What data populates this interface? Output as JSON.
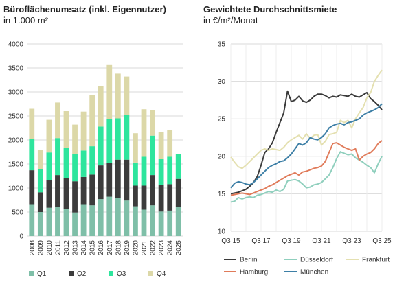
{
  "chart_data": [
    {
      "type": "bar",
      "stacked": true,
      "title": "Büroflächenumsatz (inkl. Eigennutzer)",
      "subtitle": "in 1.000 m²",
      "categories": [
        "2008",
        "2009",
        "2010",
        "2011",
        "2012",
        "2013",
        "2014",
        "2015",
        "2016",
        "2017",
        "2018",
        "2019",
        "2020",
        "2021",
        "2022",
        "2023",
        "2024",
        "2025"
      ],
      "ylim": [
        0,
        4000
      ],
      "yticks": [
        0,
        500,
        1000,
        1500,
        2000,
        2500,
        3000,
        3500,
        4000
      ],
      "grid": true,
      "legend_position": "bottom",
      "series": [
        {
          "name": "Q1",
          "color": "#7fbfa8",
          "values": [
            650,
            500,
            590,
            610,
            560,
            490,
            650,
            640,
            770,
            820,
            800,
            740,
            620,
            550,
            640,
            510,
            530,
            600
          ]
        },
        {
          "name": "Q2",
          "color": "#3c3c3c",
          "values": [
            720,
            410,
            570,
            660,
            640,
            650,
            580,
            640,
            700,
            700,
            790,
            850,
            430,
            500,
            630,
            560,
            550,
            590
          ]
        },
        {
          "name": "Q3",
          "color": "#2ee59d",
          "values": [
            650,
            480,
            580,
            770,
            630,
            560,
            550,
            590,
            810,
            910,
            860,
            930,
            480,
            600,
            820,
            530,
            570,
            510
          ]
        },
        {
          "name": "Q4",
          "color": "#dcd8a8",
          "values": [
            630,
            410,
            680,
            740,
            770,
            620,
            810,
            1070,
            840,
            1130,
            930,
            800,
            610,
            990,
            530,
            570,
            560,
            0
          ]
        }
      ]
    },
    {
      "type": "line",
      "title": "Gewichtete Durchschnittsmiete",
      "subtitle": "in €/m²/Monat",
      "x": [
        "Q3 15",
        "Q4 15",
        "Q1 16",
        "Q2 16",
        "Q3 16",
        "Q4 16",
        "Q1 17",
        "Q2 17",
        "Q3 17",
        "Q4 17",
        "Q1 18",
        "Q2 18",
        "Q3 18",
        "Q4 18",
        "Q1 19",
        "Q2 19",
        "Q3 19",
        "Q4 19",
        "Q1 20",
        "Q2 20",
        "Q3 20",
        "Q4 20",
        "Q1 21",
        "Q2 21",
        "Q3 21",
        "Q4 21",
        "Q1 22",
        "Q2 22",
        "Q3 22",
        "Q4 22",
        "Q1 23",
        "Q2 23",
        "Q3 23",
        "Q4 23",
        "Q1 24",
        "Q2 24",
        "Q3 24",
        "Q4 24",
        "Q1 25",
        "Q2 25",
        "Q3 25"
      ],
      "xtick_labels": [
        "Q3 15",
        "Q3 17",
        "Q3 19",
        "Q3 21",
        "Q3 23",
        "Q3 25"
      ],
      "ylim": [
        10,
        35
      ],
      "yticks": [
        10,
        15,
        20,
        25,
        30,
        35
      ],
      "grid": true,
      "legend_position": "bottom",
      "series": [
        {
          "name": "Berlin",
          "color": "#3a3a3a",
          "values": [
            15.0,
            15.1,
            15.2,
            15.4,
            15.6,
            16.0,
            16.5,
            17.3,
            18.8,
            20.5,
            21.0,
            21.8,
            23.2,
            24.5,
            25.8,
            28.7,
            27.3,
            27.5,
            28.0,
            27.4,
            27.2,
            27.5,
            28.0,
            28.3,
            28.3,
            28.1,
            27.8,
            28.0,
            27.9,
            28.2,
            28.1,
            28.0,
            28.3,
            28.0,
            27.9,
            28.2,
            28.5,
            27.7,
            27.3,
            26.8,
            26.2
          ]
        },
        {
          "name": "Düsseldorf",
          "color": "#8fcfbd",
          "values": [
            13.9,
            14.0,
            14.5,
            14.3,
            14.5,
            14.6,
            14.5,
            14.8,
            14.9,
            15.1,
            15.3,
            15.2,
            15.5,
            15.3,
            15.6,
            16.7,
            16.8,
            16.9,
            16.7,
            16.3,
            15.8,
            15.9,
            16.2,
            16.3,
            16.5,
            17.0,
            17.5,
            18.5,
            19.7,
            20.6,
            20.4,
            20.2,
            20.3,
            19.8,
            19.5,
            19.2,
            18.8,
            18.5,
            17.8,
            19.0,
            20.0
          ]
        },
        {
          "name": "Frankfurt",
          "color": "#e4e0b0",
          "values": [
            19.9,
            19.2,
            18.6,
            18.4,
            18.8,
            19.3,
            19.8,
            20.3,
            20.8,
            21.0,
            20.8,
            21.0,
            20.9,
            20.8,
            21.2,
            21.8,
            22.2,
            22.5,
            22.8,
            22.3,
            23.0,
            22.4,
            22.8,
            22.9,
            21.5,
            22.0,
            22.9,
            23.0,
            23.2,
            24.8,
            24.5,
            24.8,
            23.8,
            25.0,
            25.8,
            26.5,
            27.8,
            28.5,
            30.0,
            30.8,
            31.5
          ]
        },
        {
          "name": "Hamburg",
          "color": "#e07b5a",
          "values": [
            14.8,
            14.9,
            15.0,
            15.1,
            15.0,
            14.9,
            15.1,
            15.3,
            15.5,
            15.7,
            16.0,
            16.2,
            16.5,
            16.8,
            17.1,
            17.4,
            17.6,
            17.8,
            17.5,
            17.9,
            18.0,
            18.2,
            18.4,
            18.5,
            18.7,
            19.3,
            20.5,
            21.7,
            21.8,
            21.5,
            21.2,
            21.0,
            20.8,
            21.0,
            19.5,
            20.0,
            20.3,
            20.5,
            21.0,
            21.7,
            22.1
          ]
        },
        {
          "name": "München",
          "color": "#3d7fa6",
          "values": [
            15.8,
            16.4,
            16.6,
            16.5,
            16.3,
            16.2,
            16.5,
            17.0,
            17.5,
            18.0,
            18.5,
            18.8,
            19.0,
            19.3,
            19.4,
            19.8,
            20.3,
            21.0,
            21.7,
            21.5,
            21.8,
            22.5,
            22.3,
            22.2,
            22.5,
            23.0,
            23.8,
            24.1,
            24.3,
            24.4,
            24.2,
            24.5,
            24.6,
            24.8,
            25.0,
            25.5,
            25.8,
            26.0,
            26.2,
            26.5,
            27.0
          ]
        }
      ]
    }
  ]
}
